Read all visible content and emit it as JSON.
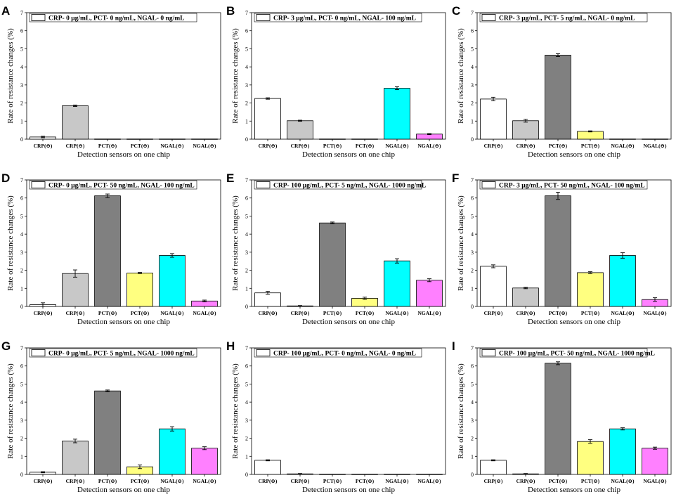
{
  "figure": {
    "bar_colors": [
      "#ffffff",
      "#c8c8c8",
      "#808080",
      "#ffff80",
      "#00ffff",
      "#ff80ff"
    ]
  },
  "chart_data": [
    {
      "panel": "A",
      "type": "bar",
      "title": "CRP- 0 μg/mL, PCT- 0 ng/mL, NGAL- 0 ng/mL",
      "xlabel": "Detection sensors on one chip",
      "ylabel": "Rate of resistance changes (%)",
      "ylim": [
        0,
        7
      ],
      "yticks": [
        "0",
        "1",
        "2",
        "3",
        "4",
        "5",
        "6",
        "7"
      ],
      "categories": [
        "CRP(⊖)",
        "CRP(⊖)",
        "PCT(⊖)",
        "PCT(⊖)",
        "NGAL(⊖)",
        "NGAL(⊖)"
      ],
      "values": [
        0.12,
        1.85,
        0.01,
        0.01,
        0.01,
        0.01
      ],
      "errors": [
        0.04,
        0.04,
        0.01,
        0.01,
        0.01,
        0.01
      ]
    },
    {
      "panel": "B",
      "type": "bar",
      "title": "CRP- 3 μg/mL, PCT- 0 ng/mL, NGAL- 100 ng/mL",
      "xlabel": "Detection sensors on one chip",
      "ylabel": "Rate of resistance changes (%)",
      "ylim": [
        0,
        7
      ],
      "yticks": [
        "0",
        "1",
        "2",
        "3",
        "4",
        "5",
        "6",
        "7"
      ],
      "categories": [
        "CRP(⊖)",
        "CRP(⊖)",
        "PCT(⊖)",
        "PCT(⊖)",
        "NGAL(⊖)",
        "NGAL(⊖)"
      ],
      "values": [
        2.25,
        1.02,
        0.01,
        0.01,
        2.82,
        0.28
      ],
      "errors": [
        0.04,
        0.03,
        0.01,
        0.01,
        0.08,
        0.03
      ]
    },
    {
      "panel": "C",
      "type": "bar",
      "title": "CRP- 3 μg/mL, PCT- 5 ng/mL, NGAL- 0 ng/mL",
      "xlabel": "Detection sensors on one chip",
      "ylabel": "Rate of resistance changes (%)",
      "ylim": [
        0,
        7
      ],
      "yticks": [
        "0",
        "1",
        "2",
        "3",
        "4",
        "5",
        "6",
        "7"
      ],
      "categories": [
        "CRP(⊖)",
        "CRP(⊖)",
        "PCT(⊖)",
        "PCT(⊖)",
        "NGAL(⊖)",
        "NGAL(⊖)"
      ],
      "values": [
        2.22,
        1.02,
        4.65,
        0.43,
        0.01,
        0.01
      ],
      "errors": [
        0.1,
        0.08,
        0.08,
        0.03,
        0.01,
        0.01
      ]
    },
    {
      "panel": "D",
      "type": "bar",
      "title": "CRP- 0 μg/mL, PCT- 50 ng/mL, NGAL- 100 ng/mL",
      "xlabel": "Detection sensors on one chip",
      "ylabel": "Rate of resistance changes (%)",
      "ylim": [
        0,
        7
      ],
      "yticks": [
        "0",
        "1",
        "2",
        "3",
        "4",
        "5",
        "6",
        "7"
      ],
      "categories": [
        "CRP(⊖)",
        "CRP(⊖)",
        "PCT(⊖)",
        "PCT(⊖)",
        "NGAL(⊖)",
        "NGAL(⊖)"
      ],
      "values": [
        0.1,
        1.82,
        6.12,
        1.85,
        2.82,
        0.3
      ],
      "errors": [
        0.1,
        0.2,
        0.1,
        0.03,
        0.1,
        0.05
      ]
    },
    {
      "panel": "E",
      "type": "bar",
      "title": "CRP- 100 μg/mL, PCT- 5 ng/mL, NGAL- 1000 ng/mL",
      "xlabel": "Detection sensors on one chip",
      "ylabel": "Rate of resistance changes (%)",
      "ylim": [
        0,
        7
      ],
      "yticks": [
        "0",
        "1",
        "2",
        "3",
        "4",
        "5",
        "6",
        "7"
      ],
      "categories": [
        "CRP(⊖)",
        "CRP(⊖)",
        "PCT(⊖)",
        "PCT(⊖)",
        "NGAL(⊖)",
        "NGAL(⊖)"
      ],
      "values": [
        0.75,
        0.03,
        4.62,
        0.45,
        2.52,
        1.45
      ],
      "errors": [
        0.08,
        0.02,
        0.05,
        0.06,
        0.12,
        0.08
      ]
    },
    {
      "panel": "F",
      "type": "bar",
      "title": "CRP- 3 μg/mL, PCT- 50 ng/mL, NGAL- 100 ng/mL",
      "xlabel": "Detection sensors on one chip",
      "ylabel": "Rate of resistance changes (%)",
      "ylim": [
        0,
        7
      ],
      "yticks": [
        "0",
        "1",
        "2",
        "3",
        "4",
        "5",
        "6",
        "7"
      ],
      "categories": [
        "CRP(⊖)",
        "CRP(⊖)",
        "PCT(⊖)",
        "PCT(⊖)",
        "NGAL(⊖)",
        "NGAL(⊖)"
      ],
      "values": [
        2.22,
        1.02,
        6.12,
        1.87,
        2.82,
        0.38
      ],
      "errors": [
        0.08,
        0.04,
        0.2,
        0.05,
        0.15,
        0.1
      ]
    },
    {
      "panel": "G",
      "type": "bar",
      "title": "CRP- 0 μg/mL, PCT- 5 ng/mL, NGAL- 1000 ng/mL",
      "xlabel": "Detection sensors on one chip",
      "ylabel": "Rate of resistance changes (%)",
      "ylim": [
        0,
        7
      ],
      "yticks": [
        "0",
        "1",
        "2",
        "3",
        "4",
        "5",
        "6",
        "7"
      ],
      "categories": [
        "CRP(⊖)",
        "CRP(⊖)",
        "PCT(⊖)",
        "PCT(⊖)",
        "NGAL(⊖)",
        "NGAL(⊖)"
      ],
      "values": [
        0.12,
        1.85,
        4.62,
        0.42,
        2.52,
        1.45
      ],
      "errors": [
        0.03,
        0.1,
        0.05,
        0.1,
        0.12,
        0.08
      ]
    },
    {
      "panel": "H",
      "type": "bar",
      "title": "CRP- 100 μg/mL, PCT- 0 ng/mL, NGAL- 0 ng/mL",
      "xlabel": "Detection sensors on one chip",
      "ylabel": "Rate of resistance changes (%)",
      "ylim": [
        0,
        7
      ],
      "yticks": [
        "0",
        "1",
        "2",
        "3",
        "4",
        "5",
        "6",
        "7"
      ],
      "categories": [
        "CRP(⊖)",
        "CRP(⊖)",
        "PCT(⊖)",
        "PCT(⊖)",
        "NGAL(⊖)",
        "NGAL(⊖)"
      ],
      "values": [
        0.78,
        0.03,
        0.01,
        0.01,
        0.01,
        0.01
      ],
      "errors": [
        0.03,
        0.02,
        0.01,
        0.01,
        0.01,
        0.01
      ]
    },
    {
      "panel": "I",
      "type": "bar",
      "title": "CRP- 100 μg/mL, PCT- 50 ng/mL, NGAL- 1000 ng/mL",
      "xlabel": "Detection sensors on one chip",
      "ylabel": "Rate of resistance changes (%)",
      "ylim": [
        0,
        7
      ],
      "yticks": [
        "0",
        "1",
        "2",
        "3",
        "4",
        "5",
        "6",
        "7"
      ],
      "categories": [
        "CRP(⊖)",
        "CRP(⊖)",
        "PCT(⊖)",
        "PCT(⊖)",
        "NGAL(⊖)",
        "NGAL(⊖)"
      ],
      "values": [
        0.78,
        0.03,
        6.15,
        1.82,
        2.52,
        1.45
      ],
      "errors": [
        0.03,
        0.02,
        0.08,
        0.1,
        0.06,
        0.06
      ]
    }
  ]
}
